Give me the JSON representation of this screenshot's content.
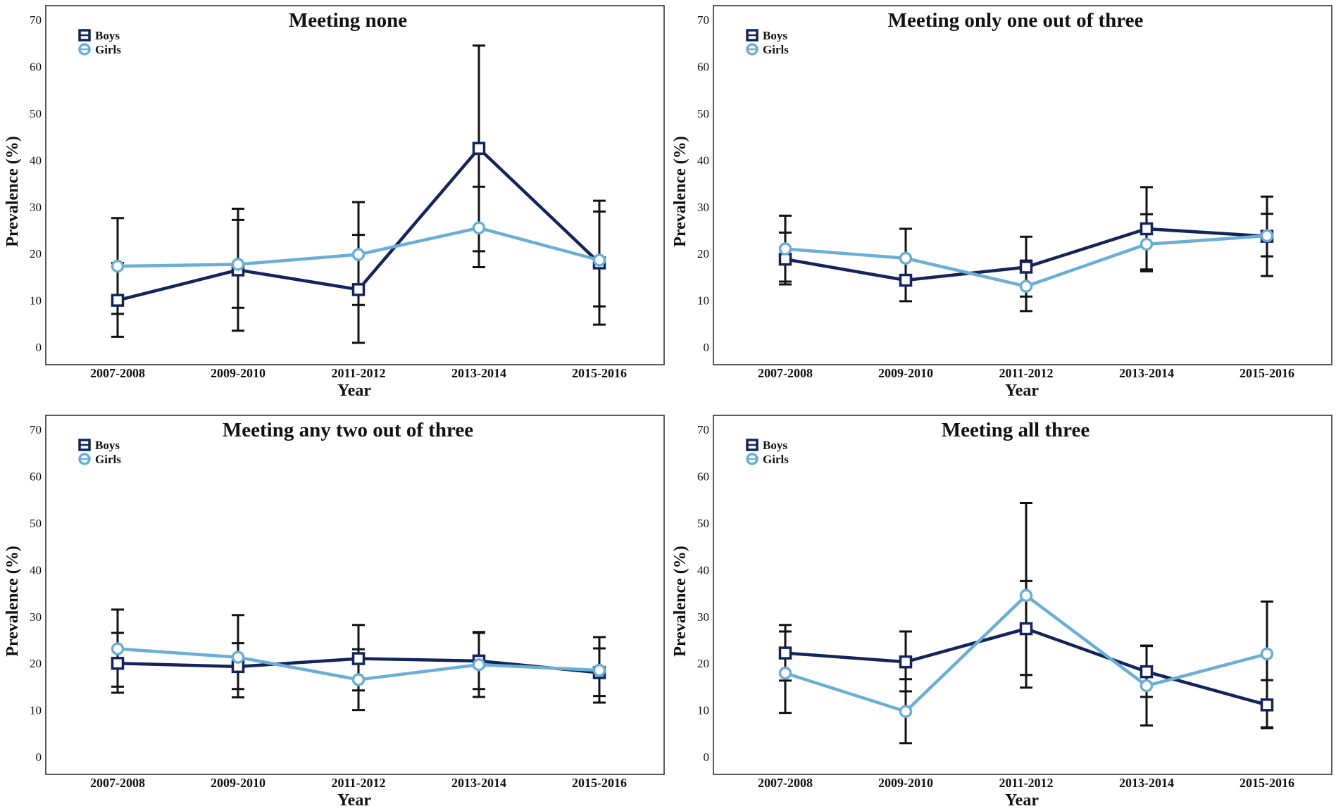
{
  "figure": {
    "xlabel": "Year",
    "ylabel": "Prevalence (%)",
    "colors": {
      "boys": "#13245a",
      "girls": "#6aaed6",
      "error_bars": "#111111"
    }
  },
  "chart_data": [
    {
      "type": "line",
      "title": "Meeting none",
      "xlabel": "Year",
      "ylabel": "Prevalence (%)",
      "categories": [
        "2007-2008",
        "2009-2010",
        "2011-2012",
        "2013-2014",
        "2015-2016"
      ],
      "ylim": [
        0,
        70
      ],
      "yticks": [
        0,
        10,
        20,
        30,
        40,
        50,
        60,
        70
      ],
      "legend_position": "top-left",
      "series": [
        {
          "name": "Boys",
          "marker": "square",
          "color": "#13245a",
          "values": [
            10.0,
            16.5,
            12.3,
            42.5,
            18.0
          ],
          "lower": [
            2.2,
            3.5,
            0.9,
            20.5,
            4.8
          ],
          "upper": [
            18.0,
            29.6,
            24.0,
            64.5,
            31.3
          ]
        },
        {
          "name": "Girls",
          "marker": "circle",
          "color": "#6aaed6",
          "values": [
            17.3,
            17.7,
            19.8,
            25.5,
            18.6
          ],
          "lower": [
            7.1,
            8.4,
            9.0,
            17.1,
            8.7
          ],
          "upper": [
            27.6,
            27.2,
            31.0,
            34.3,
            29.0
          ]
        }
      ]
    },
    {
      "type": "line",
      "title": "Meeting only one out of three",
      "xlabel": "Year",
      "ylabel": "Prevalence (%)",
      "categories": [
        "2007-2008",
        "2009-2010",
        "2011-2012",
        "2013-2014",
        "2015-2016"
      ],
      "ylim": [
        0,
        70
      ],
      "yticks": [
        0,
        10,
        20,
        30,
        40,
        50,
        60,
        70
      ],
      "legend_position": "top-left",
      "series": [
        {
          "name": "Boys",
          "marker": "square",
          "color": "#13245a",
          "values": [
            18.8,
            14.3,
            17.1,
            25.3,
            23.7
          ],
          "lower": [
            13.4,
            9.8,
            10.8,
            16.2,
            15.2
          ],
          "upper": [
            24.5,
            18.9,
            23.6,
            34.2,
            32.2
          ]
        },
        {
          "name": "Girls",
          "marker": "circle",
          "color": "#6aaed6",
          "values": [
            21.0,
            19.0,
            13.0,
            22.0,
            23.8
          ],
          "lower": [
            14.0,
            13.2,
            7.7,
            16.6,
            19.4
          ],
          "upper": [
            28.1,
            25.3,
            18.5,
            28.4,
            28.5
          ]
        }
      ]
    },
    {
      "type": "line",
      "title": "Meeting any two out of three",
      "xlabel": "Year",
      "ylabel": "Prevalence (%)",
      "categories": [
        "2007-2008",
        "2009-2010",
        "2011-2012",
        "2013-2014",
        "2015-2016"
      ],
      "ylim": [
        0,
        70
      ],
      "yticks": [
        0,
        10,
        20,
        30,
        40,
        50,
        60,
        70
      ],
      "legend_position": "top-left",
      "series": [
        {
          "name": "Boys",
          "marker": "square",
          "color": "#13245a",
          "values": [
            20.0,
            19.3,
            21.0,
            20.5,
            18.0
          ],
          "lower": [
            13.7,
            14.5,
            14.2,
            14.5,
            11.6
          ],
          "upper": [
            26.5,
            24.3,
            28.2,
            26.7,
            23.2
          ]
        },
        {
          "name": "Girls",
          "marker": "circle",
          "color": "#6aaed6",
          "values": [
            23.1,
            21.3,
            16.5,
            19.7,
            18.5
          ],
          "lower": [
            15.0,
            12.7,
            10.0,
            12.8,
            13.0
          ],
          "upper": [
            31.5,
            30.3,
            23.0,
            26.5,
            25.6
          ]
        }
      ]
    },
    {
      "type": "line",
      "title": "Meeting all three",
      "xlabel": "Year",
      "ylabel": "Prevalence (%)",
      "categories": [
        "2007-2008",
        "2009-2010",
        "2011-2012",
        "2013-2014",
        "2015-2016"
      ],
      "ylim": [
        0,
        70
      ],
      "yticks": [
        0,
        10,
        20,
        30,
        40,
        50,
        60,
        70
      ],
      "legend_position": "top-left",
      "series": [
        {
          "name": "Boys",
          "marker": "square",
          "color": "#13245a",
          "values": [
            22.2,
            20.3,
            27.4,
            18.2,
            11.1
          ],
          "lower": [
            16.3,
            14.0,
            17.5,
            12.8,
            6.1
          ],
          "upper": [
            28.2,
            26.8,
            37.6,
            23.8,
            16.4
          ]
        },
        {
          "name": "Girls",
          "marker": "circle",
          "color": "#6aaed6",
          "values": [
            17.9,
            9.7,
            34.5,
            15.2,
            22.0
          ],
          "lower": [
            9.4,
            2.9,
            14.8,
            6.7,
            6.3
          ],
          "upper": [
            26.8,
            16.6,
            54.3,
            23.7,
            33.2
          ]
        }
      ]
    }
  ]
}
